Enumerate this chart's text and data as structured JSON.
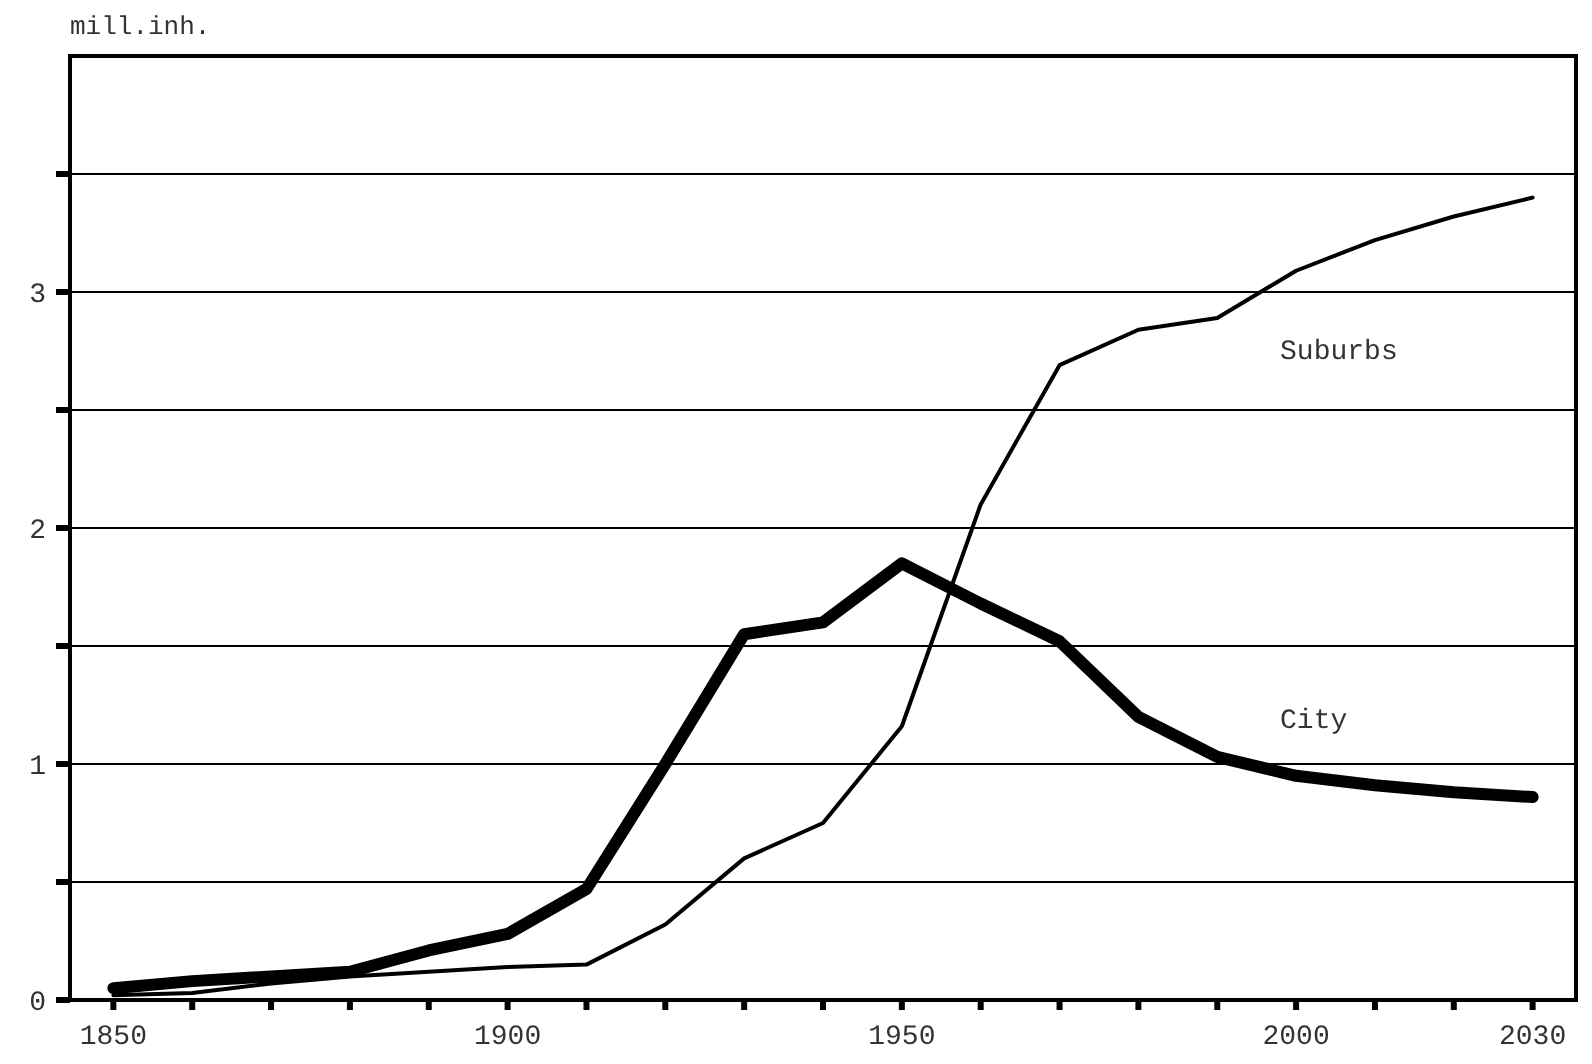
{
  "chart_data": {
    "type": "line",
    "ylabel": "mill.inh.",
    "x": [
      1850,
      1860,
      1870,
      1880,
      1890,
      1900,
      1910,
      1920,
      1930,
      1940,
      1950,
      1960,
      1970,
      1980,
      1990,
      2000,
      2010,
      2020,
      2030
    ],
    "series": [
      {
        "name": "City",
        "color": "#000000",
        "values": [
          0.05,
          0.08,
          0.1,
          0.12,
          0.21,
          0.28,
          0.47,
          1.0,
          1.55,
          1.6,
          1.85,
          1.68,
          1.52,
          1.2,
          1.03,
          0.95,
          0.91,
          0.88,
          0.86
        ]
      },
      {
        "name": "Suburbs",
        "color": "#000000",
        "values": [
          0.02,
          0.03,
          0.07,
          0.1,
          0.12,
          0.14,
          0.15,
          0.32,
          0.6,
          0.75,
          1.16,
          2.1,
          2.69,
          2.84,
          2.89,
          3.09,
          3.22,
          3.32,
          3.4
        ]
      }
    ],
    "xlim": [
      1844.5,
      2035.5
    ],
    "xticks": [
      1850,
      {
        "value": 1860,
        "label": null
      },
      {
        "value": 1870,
        "label": null
      },
      {
        "value": 1880,
        "label": null
      },
      {
        "value": 1890,
        "label": null
      },
      1900,
      {
        "value": 1910,
        "label": null
      },
      {
        "value": 1920,
        "label": null
      },
      {
        "value": 1930,
        "label": null
      },
      {
        "value": 1940,
        "label": null
      },
      1950,
      {
        "value": 1960,
        "label": null
      },
      {
        "value": 1970,
        "label": null
      },
      {
        "value": 1980,
        "label": null
      },
      {
        "value": 1990,
        "label": null
      },
      2000,
      {
        "value": 2010,
        "label": null
      },
      {
        "value": 2020,
        "label": null
      },
      2030
    ],
    "ylim": [
      0,
      4
    ],
    "yticks": [
      0,
      {
        "value": 0.5,
        "label": null
      },
      1,
      {
        "value": 1.5,
        "label": null
      },
      2,
      {
        "value": 2.5,
        "label": null
      },
      3,
      {
        "value": 3.5,
        "label": null
      }
    ],
    "grid": "y",
    "marker": "none",
    "line_style": "solid"
  }
}
